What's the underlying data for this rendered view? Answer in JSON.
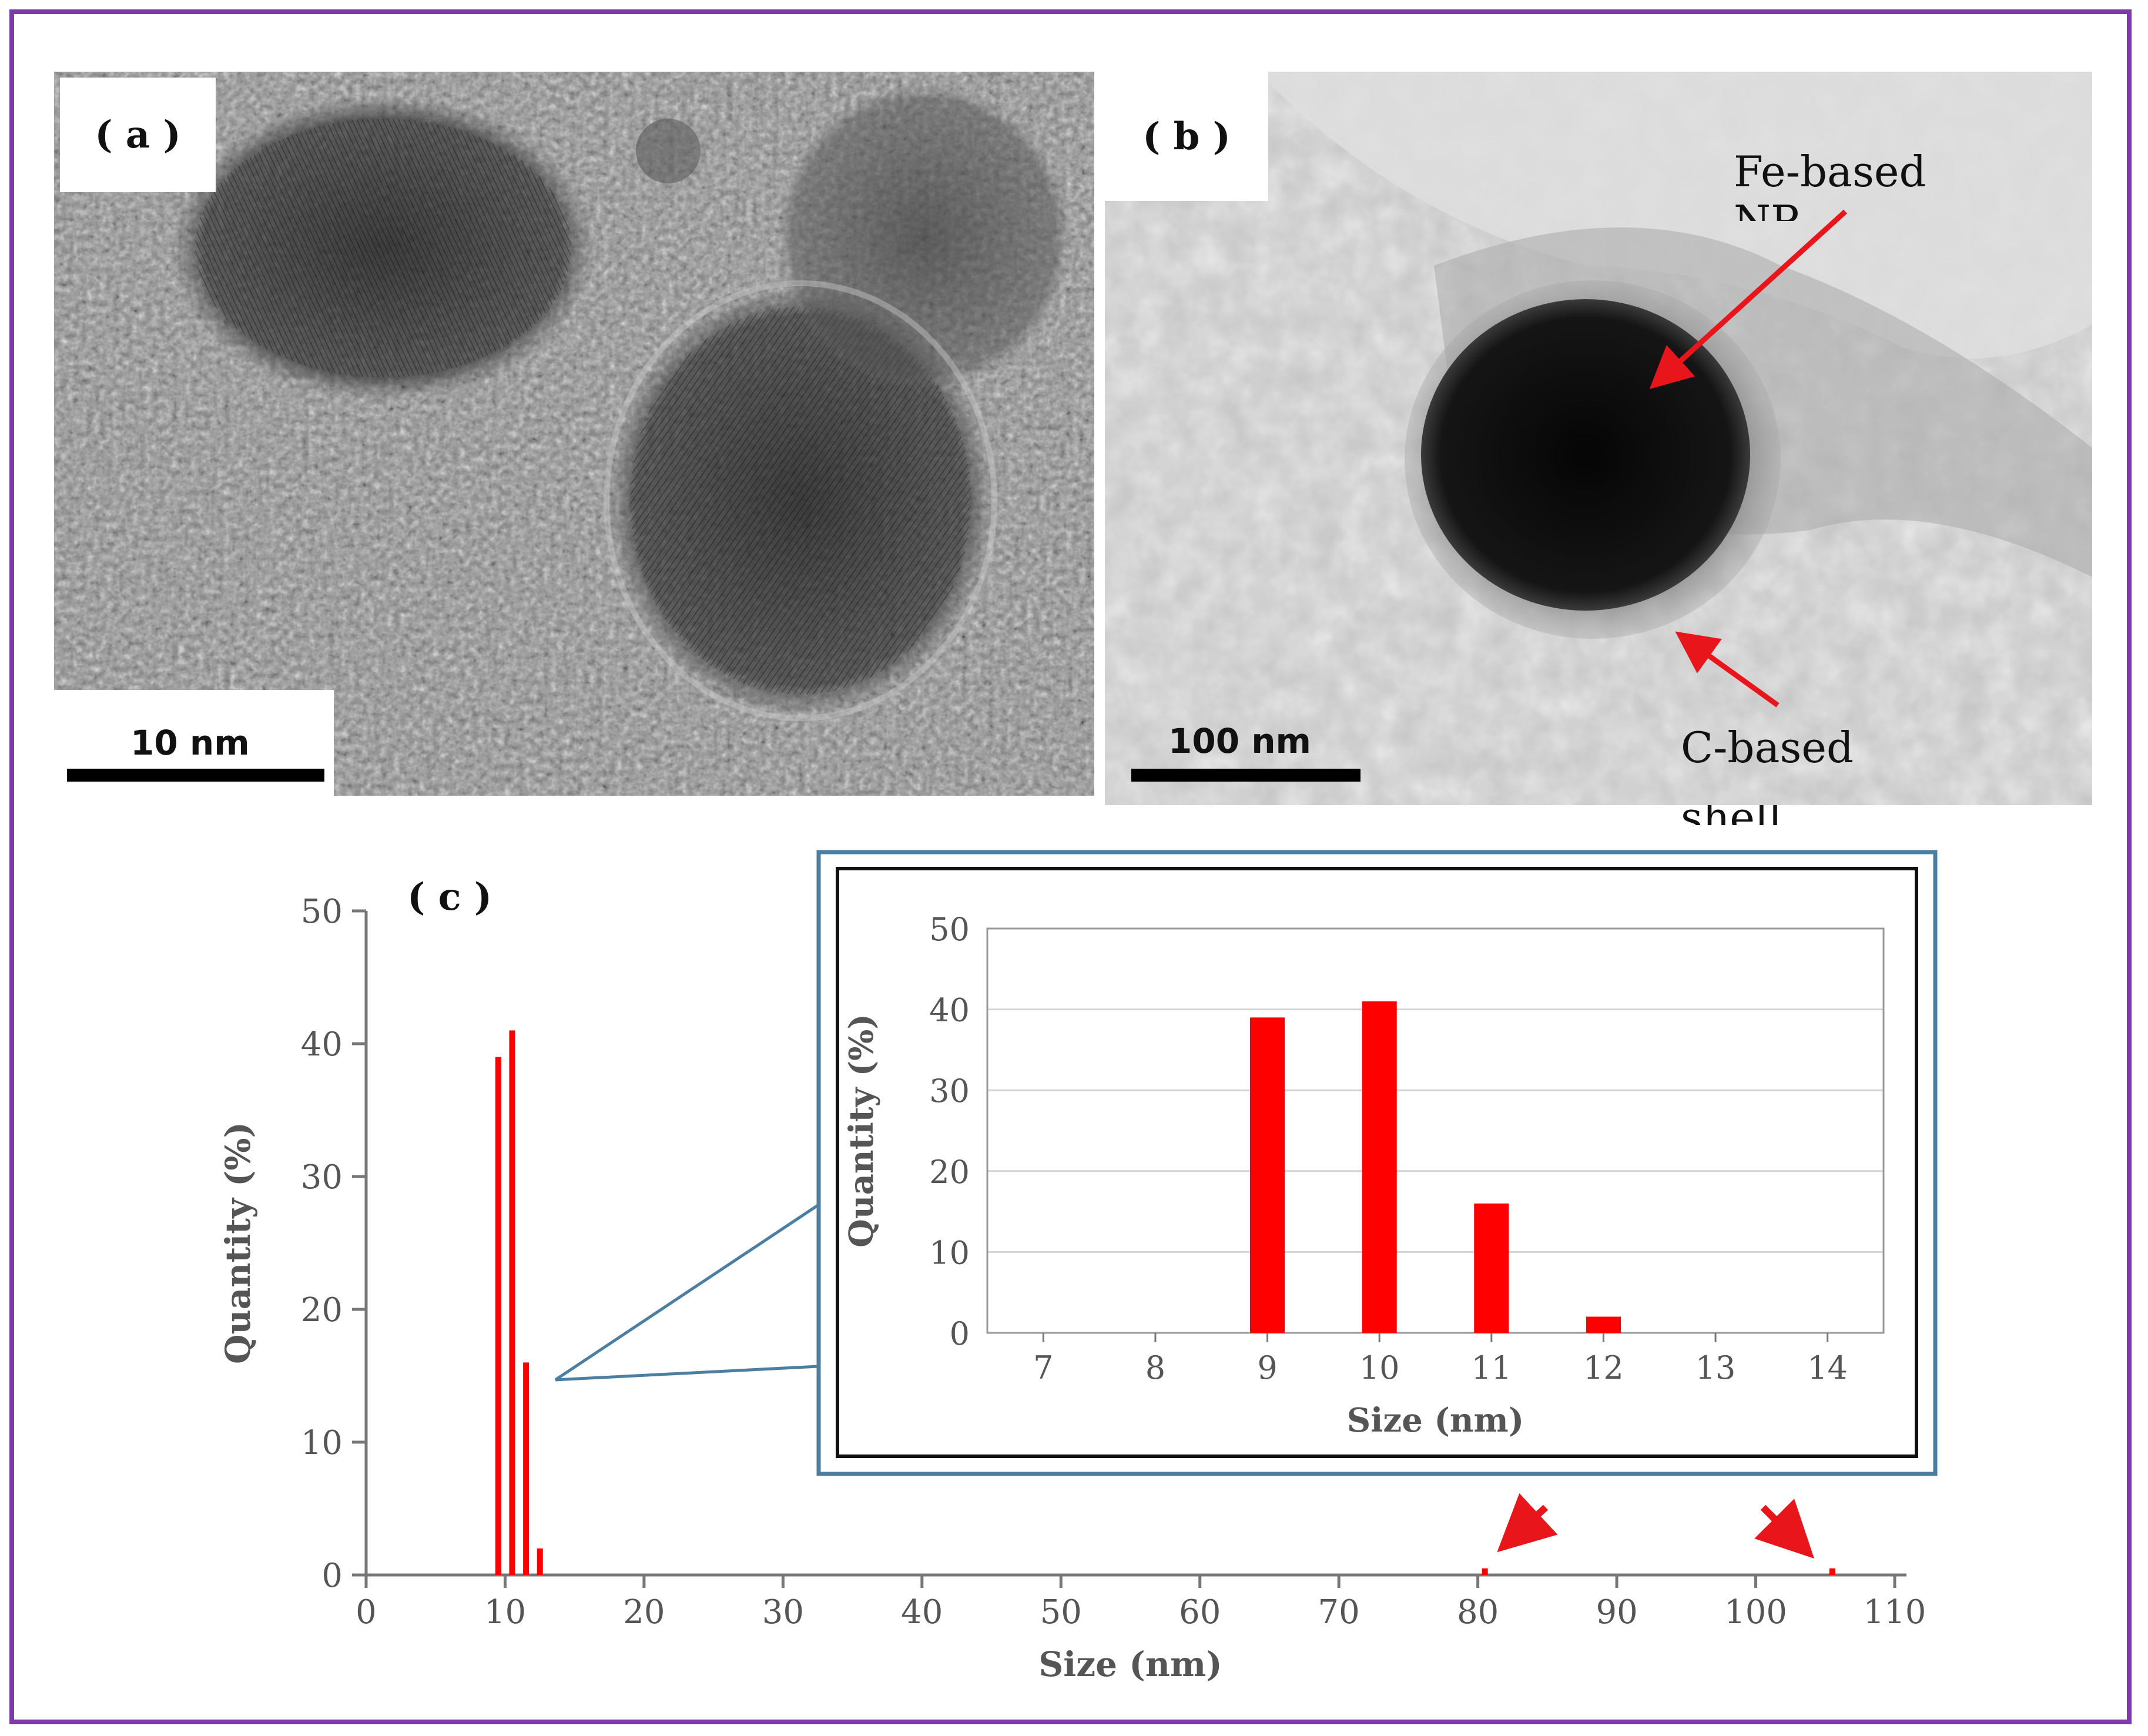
{
  "panels": {
    "a": {
      "label": "( a )",
      "scale_bar": "10 nm"
    },
    "b": {
      "label": "( b )",
      "scale_bar": "100 nm",
      "annotations": [
        {
          "text": "Fe-based"
        },
        {
          "text": "NP"
        },
        {
          "text": "C-based"
        },
        {
          "text": "shell"
        }
      ]
    },
    "c": {
      "label": "( c )"
    }
  },
  "colors": {
    "frame": "#7e3aa7",
    "bars": "#ff0000",
    "arrows": "#e8151b",
    "inset_border": "#4a7ea3"
  },
  "chart_data": [
    {
      "type": "bar",
      "xlabel": "Size (nm)",
      "ylabel": "Quantity (%)",
      "xlim": [
        0,
        110
      ],
      "ylim": [
        0,
        50
      ],
      "xticks": [
        "0",
        "10",
        "20",
        "30",
        "40",
        "50",
        "60",
        "70",
        "80",
        "90",
        "100",
        "110"
      ],
      "yticks": [
        "0",
        "10",
        "20",
        "30",
        "40",
        "50"
      ],
      "x": [
        9,
        10,
        11,
        12,
        80,
        105
      ],
      "values": [
        39,
        41,
        16,
        2,
        0.5,
        0.5
      ],
      "grid": false
    },
    {
      "type": "bar",
      "xlabel": "Size (nm)",
      "ylabel": "Quantity (%)",
      "ylim": [
        0,
        50
      ],
      "categories": [
        "7",
        "8",
        "9",
        "10",
        "11",
        "12",
        "13",
        "14"
      ],
      "yticks": [
        "0",
        "10",
        "20",
        "30",
        "40",
        "50"
      ],
      "values": [
        0,
        0,
        39,
        41,
        16,
        2,
        0,
        0
      ],
      "grid": true
    }
  ]
}
